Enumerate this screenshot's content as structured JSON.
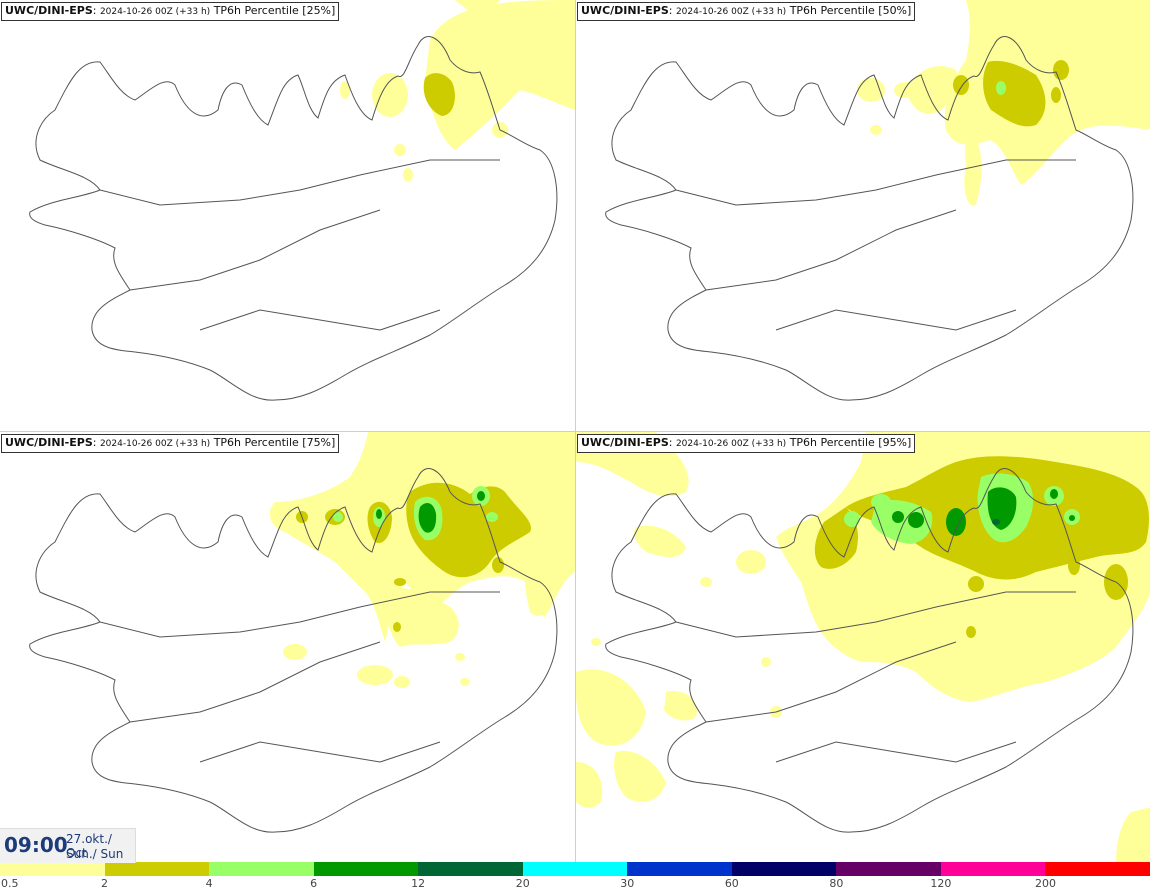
{
  "panels": [
    {
      "model": "UWC/DINI-EPS",
      "run": "2024-10-26 00Z (+33 h)",
      "product": "TP6h Percentile [25%]"
    },
    {
      "model": "UWC/DINI-EPS",
      "run": "2024-10-26 00Z (+33 h)",
      "product": "TP6h Percentile [50%]"
    },
    {
      "model": "UWC/DINI-EPS",
      "run": "2024-10-26 00Z (+33 h)",
      "product": "TP6h Percentile [75%]"
    },
    {
      "model": "UWC/DINI-EPS",
      "run": "2024-10-26 00Z (+33 h)",
      "product": "TP6h Percentile [95%]"
    }
  ],
  "valid_time": {
    "time": "09:00",
    "date": "27.okt./ Oct",
    "day": "Sun./ Sun"
  },
  "legend": {
    "labels": [
      "0.5",
      "2",
      "4",
      "6",
      "12",
      "20",
      "30",
      "60",
      "80",
      "120",
      "200"
    ],
    "colors": [
      "#ffff99",
      "#cccc00",
      "#99ff66",
      "#009900",
      "#006633",
      "#00ffff",
      "#0033cc",
      "#000066",
      "#660066",
      "#ff0099",
      "#ff0000"
    ]
  }
}
